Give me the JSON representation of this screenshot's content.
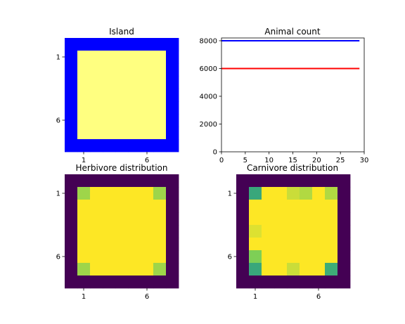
{
  "chart_data": [
    {
      "type": "heatmap",
      "title": "Island",
      "colormap": "categorical",
      "colors": {
        "water": "#0000ff",
        "land": "#ffff80"
      },
      "legend": [
        "water",
        "land"
      ],
      "grid": false,
      "xticks": [
        1,
        6
      ],
      "yticks": [
        1,
        6
      ],
      "rows": [
        [
          "water",
          "water",
          "water",
          "water",
          "water",
          "water",
          "water",
          "water",
          "water"
        ],
        [
          "water",
          "land",
          "land",
          "land",
          "land",
          "land",
          "land",
          "land",
          "water"
        ],
        [
          "water",
          "land",
          "land",
          "land",
          "land",
          "land",
          "land",
          "land",
          "water"
        ],
        [
          "water",
          "land",
          "land",
          "land",
          "land",
          "land",
          "land",
          "land",
          "water"
        ],
        [
          "water",
          "land",
          "land",
          "land",
          "land",
          "land",
          "land",
          "land",
          "water"
        ],
        [
          "water",
          "land",
          "land",
          "land",
          "land",
          "land",
          "land",
          "land",
          "water"
        ],
        [
          "water",
          "land",
          "land",
          "land",
          "land",
          "land",
          "land",
          "land",
          "water"
        ],
        [
          "water",
          "land",
          "land",
          "land",
          "land",
          "land",
          "land",
          "land",
          "water"
        ],
        [
          "water",
          "water",
          "water",
          "water",
          "water",
          "water",
          "water",
          "water",
          "water"
        ]
      ]
    },
    {
      "type": "line",
      "title": "Animal count",
      "xlim": [
        0,
        30
      ],
      "ylim": [
        0,
        8200
      ],
      "xticks": [
        0,
        5,
        10,
        15,
        20,
        25,
        30
      ],
      "yticks": [
        0,
        2000,
        4000,
        6000,
        8000
      ],
      "grid": false,
      "series": [
        {
          "color": "#0000ff",
          "x": [
            0,
            29
          ],
          "y": [
            8000,
            8000
          ]
        },
        {
          "color": "#ff0000",
          "x": [
            0,
            29
          ],
          "y": [
            6000,
            6000
          ]
        }
      ]
    },
    {
      "type": "heatmap",
      "title": "Herbivore distribution",
      "colormap": "viridis",
      "vmin": 0,
      "vmax": 1,
      "grid": false,
      "xticks": [
        1,
        6
      ],
      "yticks": [
        1,
        6
      ],
      "values": [
        [
          0,
          0,
          0,
          0,
          0,
          0,
          0,
          0,
          0
        ],
        [
          0,
          0.85,
          1,
          1,
          1,
          1,
          1,
          0.85,
          0
        ],
        [
          0,
          1,
          1,
          1,
          1,
          1,
          1,
          1,
          0
        ],
        [
          0,
          1,
          1,
          1,
          1,
          1,
          1,
          1,
          0
        ],
        [
          0,
          1,
          1,
          1,
          1,
          1,
          1,
          1,
          0
        ],
        [
          0,
          1,
          1,
          1,
          1,
          1,
          1,
          1,
          0
        ],
        [
          0,
          1,
          1,
          1,
          1,
          1,
          1,
          1,
          0
        ],
        [
          0,
          0.85,
          1,
          1,
          1,
          1,
          1,
          0.85,
          0
        ],
        [
          0,
          0,
          0,
          0,
          0,
          0,
          0,
          0,
          0
        ]
      ]
    },
    {
      "type": "heatmap",
      "title": "Carnivore distribution",
      "colormap": "viridis",
      "vmin": 0,
      "vmax": 1,
      "grid": false,
      "xticks": [
        1,
        6
      ],
      "yticks": [
        1,
        6
      ],
      "values": [
        [
          0,
          0,
          0,
          0,
          0,
          0,
          0,
          0,
          0
        ],
        [
          0,
          0.6,
          1,
          1,
          0.92,
          0.88,
          1,
          0.88,
          0
        ],
        [
          0,
          1,
          1,
          1,
          1,
          1,
          1,
          1,
          0
        ],
        [
          0,
          1,
          1,
          1,
          1,
          1,
          1,
          1,
          0
        ],
        [
          0,
          0.95,
          1,
          1,
          1,
          1,
          1,
          1,
          0
        ],
        [
          0,
          1,
          1,
          1,
          1,
          1,
          1,
          1,
          0
        ],
        [
          0,
          0.8,
          1,
          1,
          1,
          1,
          1,
          1,
          0
        ],
        [
          0,
          0.6,
          1,
          1,
          0.92,
          1,
          1,
          0.62,
          0
        ],
        [
          0,
          0,
          0,
          0,
          0,
          0,
          0,
          0,
          0
        ]
      ]
    }
  ]
}
